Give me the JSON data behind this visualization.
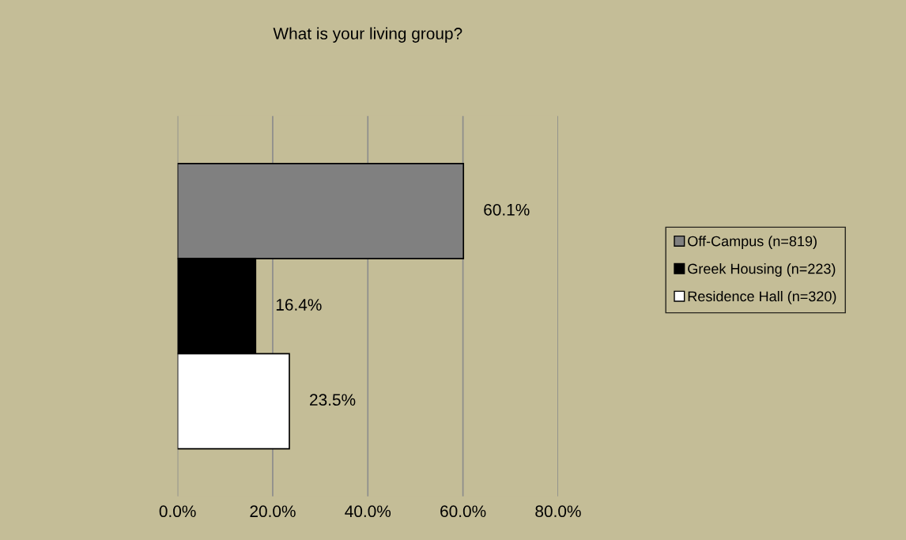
{
  "chart_data": {
    "type": "bar",
    "orientation": "horizontal",
    "title": "What is your living group?",
    "categories": [
      null
    ],
    "series": [
      {
        "name": "Off-Campus (n=819)",
        "color": "#808080",
        "values": [
          60.1
        ],
        "value_labels": [
          "60.1%"
        ]
      },
      {
        "name": "Greek Housing (n=223)",
        "color": "#000000",
        "values": [
          16.4
        ],
        "value_labels": [
          "16.4%"
        ]
      },
      {
        "name": "Residence Hall (n=320)",
        "color": "#ffffff",
        "values": [
          23.5
        ],
        "value_labels": [
          "23.5%"
        ]
      }
    ],
    "xlim": [
      0,
      80
    ],
    "xticks": [
      {
        "value": 0,
        "label": "0.0%"
      },
      {
        "value": 20,
        "label": "20.0%"
      },
      {
        "value": 40,
        "label": "40.0%"
      },
      {
        "value": 60,
        "label": "60.0%"
      },
      {
        "value": 80,
        "label": "80.0%"
      }
    ],
    "grid": "x",
    "legend": "right"
  }
}
